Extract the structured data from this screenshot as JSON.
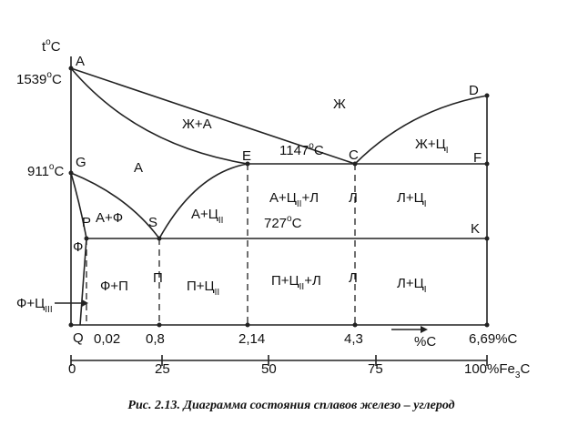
{
  "diagram": {
    "axis_title": {
      "text": "t",
      "sup": "o",
      "tail": "C"
    },
    "temperatures": [
      {
        "text": "1539",
        "sup": "o",
        "tail": "C"
      },
      {
        "text": "911",
        "sup": "o",
        "tail": "C"
      },
      {
        "text": "1147",
        "sup": "o",
        "tail": "C"
      },
      {
        "text": "727",
        "sup": "o",
        "tail": "C"
      }
    ],
    "points": [
      "A",
      "D",
      "E",
      "C",
      "F",
      "G",
      "P",
      "S",
      "K",
      "Q"
    ],
    "phases": [
      {
        "text": "Ж"
      },
      {
        "text": "Ж+А"
      },
      {
        "text": "А"
      },
      {
        "text": "Ж+Ц",
        "sub": "I"
      },
      {
        "text": "А+Ф"
      },
      {
        "text": "А+Ц",
        "sub": "II"
      },
      {
        "text": "А+Ц",
        "sub": "II",
        "tail": "+Л"
      },
      {
        "text": "Л"
      },
      {
        "text": "Л+Ц",
        "sub": "I"
      },
      {
        "text": "Ф"
      },
      {
        "text": "Ф+П"
      },
      {
        "text": "П"
      },
      {
        "text": "П+Ц",
        "sub": "II"
      },
      {
        "text": "П+Ц",
        "sub": "II",
        "tail": "+Л"
      },
      {
        "text": "Л"
      },
      {
        "text": "Л+Ц",
        "sub": "I"
      },
      {
        "text": "Ф+Ц",
        "sub": "III"
      }
    ],
    "carbon_axis": [
      "0,02",
      "0,8",
      "2,14",
      "4,3",
      "%C",
      "6,69%C"
    ],
    "fe3c_axis": [
      {
        "text": "0"
      },
      {
        "text": "25"
      },
      {
        "text": "50"
      },
      {
        "text": "75"
      },
      {
        "text": "100%Fe",
        "sub": "3",
        "tail": "C"
      }
    ],
    "caption": "Рис. 2.13. Диаграмма состояния сплавов железо – углерод"
  }
}
